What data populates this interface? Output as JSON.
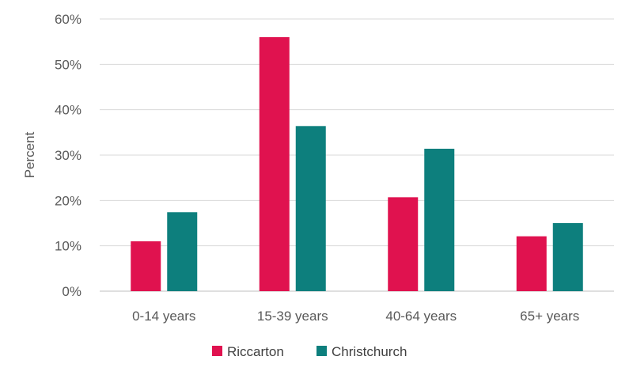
{
  "chart_data": {
    "type": "bar",
    "title": "",
    "xlabel": "",
    "ylabel": "Percent",
    "ylim": [
      0,
      60
    ],
    "yticks": [
      "0%",
      "10%",
      "20%",
      "30%",
      "40%",
      "50%",
      "60%"
    ],
    "ytick_values": [
      0,
      10,
      20,
      30,
      40,
      50,
      60
    ],
    "grid": true,
    "legend_position": "bottom",
    "categories": [
      "0-14 years",
      "15-39 years",
      "40-64 years",
      "65+ years"
    ],
    "series": [
      {
        "name": "Riccarton",
        "color": "#e0124f",
        "values": [
          11,
          56,
          20.7,
          12.1
        ]
      },
      {
        "name": "Christchurch",
        "color": "#0d7f7d",
        "values": [
          17.4,
          36.4,
          31.4,
          15
        ]
      }
    ]
  }
}
